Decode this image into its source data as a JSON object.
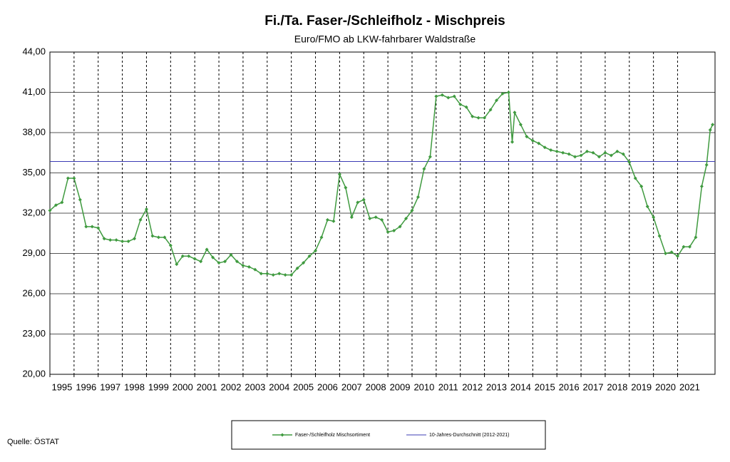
{
  "chart_data": {
    "type": "line",
    "title": "Fi./Ta. Faser-/Schleifholz - Mischpreis",
    "subtitle": "Euro/FMO ab LKW-fahrbarer Waldstraße",
    "source": "Quelle: ÖSTAT",
    "x": [
      1995.0,
      1995.25,
      1995.5,
      1995.75,
      1996.0,
      1996.25,
      1996.5,
      1996.75,
      1997.0,
      1997.25,
      1997.5,
      1997.75,
      1998.0,
      1998.25,
      1998.5,
      1998.75,
      1999.0,
      1999.25,
      1999.5,
      1999.75,
      2000.0,
      2000.25,
      2000.5,
      2000.75,
      2001.0,
      2001.25,
      2001.5,
      2001.75,
      2002.0,
      2002.25,
      2002.5,
      2002.75,
      2003.0,
      2003.25,
      2003.5,
      2003.75,
      2004.0,
      2004.25,
      2004.5,
      2004.75,
      2005.0,
      2005.25,
      2005.5,
      2005.75,
      2006.0,
      2006.25,
      2006.5,
      2006.75,
      2007.0,
      2007.25,
      2007.5,
      2007.75,
      2008.0,
      2008.25,
      2008.5,
      2008.75,
      2009.0,
      2009.25,
      2009.5,
      2009.75,
      2010.0,
      2010.25,
      2010.5,
      2010.75,
      2011.0,
      2011.25,
      2011.5,
      2011.75,
      2012.0,
      2012.25,
      2012.5,
      2012.75,
      2013.0,
      2013.25,
      2013.5,
      2013.75,
      2014.0,
      2014.15,
      2014.25,
      2014.5,
      2014.75,
      2015.0,
      2015.25,
      2015.5,
      2015.75,
      2016.0,
      2016.25,
      2016.5,
      2016.75,
      2017.0,
      2017.25,
      2017.5,
      2017.75,
      2018.0,
      2018.25,
      2018.5,
      2018.75,
      2019.0,
      2019.25,
      2019.5,
      2019.75,
      2020.0,
      2020.25,
      2020.5,
      2020.75,
      2021.0,
      2021.25,
      2021.5,
      2021.75,
      2022.0,
      2022.2,
      2022.35,
      2022.45
    ],
    "series": [
      {
        "name": "Faser-/Schleifholz Mischsortiment",
        "color": "#3f9a3f",
        "values": [
          32.2,
          32.6,
          32.8,
          34.6,
          34.6,
          33.0,
          31.0,
          31.0,
          30.9,
          30.1,
          30.0,
          30.0,
          29.9,
          29.9,
          30.1,
          31.5,
          32.3,
          30.3,
          30.2,
          30.2,
          29.6,
          28.2,
          28.8,
          28.8,
          28.6,
          28.4,
          29.3,
          28.7,
          28.3,
          28.4,
          28.9,
          28.4,
          28.1,
          28.0,
          27.8,
          27.5,
          27.5,
          27.4,
          27.5,
          27.4,
          27.4,
          27.9,
          28.3,
          28.8,
          29.2,
          30.2,
          31.5,
          31.4,
          34.9,
          33.9,
          31.7,
          32.8,
          33.0,
          31.6,
          31.7,
          31.5,
          30.6,
          30.7,
          31.0,
          31.6,
          32.2,
          33.2,
          35.3,
          36.2,
          40.7,
          40.8,
          40.6,
          40.7,
          40.1,
          39.9,
          39.2,
          39.1,
          39.1,
          39.7,
          40.4,
          40.9,
          41.0,
          37.3,
          39.5,
          38.6,
          37.7,
          37.4,
          37.2,
          36.9,
          36.7,
          36.6,
          36.5,
          36.4,
          36.2,
          36.3,
          36.6,
          36.5,
          36.2,
          36.5,
          36.3,
          36.6,
          36.4,
          35.8,
          34.6,
          34.0,
          32.5,
          31.7,
          30.3,
          29.0,
          29.1,
          28.8,
          29.5,
          29.5,
          30.2,
          34.0,
          35.6,
          38.2,
          38.6
        ]
      }
    ],
    "reference_line": {
      "name": "10-Jahres-Durchschnitt (2012-2021)",
      "value": 35.85,
      "color": "#3c3cb4"
    },
    "xlim": [
      1995,
      2022.55
    ],
    "xticks": [
      1995,
      1996,
      1997,
      1998,
      1999,
      2000,
      2001,
      2002,
      2003,
      2004,
      2005,
      2006,
      2007,
      2008,
      2009,
      2010,
      2011,
      2012,
      2013,
      2014,
      2015,
      2016,
      2017,
      2018,
      2019,
      2020,
      2021
    ],
    "ylim": [
      20,
      44
    ],
    "yticks": [
      {
        "value": 20,
        "label": "20,00"
      },
      {
        "value": 23,
        "label": "23,00"
      },
      {
        "value": 26,
        "label": "26,00"
      },
      {
        "value": 29,
        "label": "29,00"
      },
      {
        "value": 32,
        "label": "32,00"
      },
      {
        "value": 35,
        "label": "35,00"
      },
      {
        "value": 38,
        "label": "38,00"
      },
      {
        "value": 41,
        "label": "41,00"
      },
      {
        "value": 44,
        "label": "44,00"
      }
    ],
    "grid": true
  }
}
